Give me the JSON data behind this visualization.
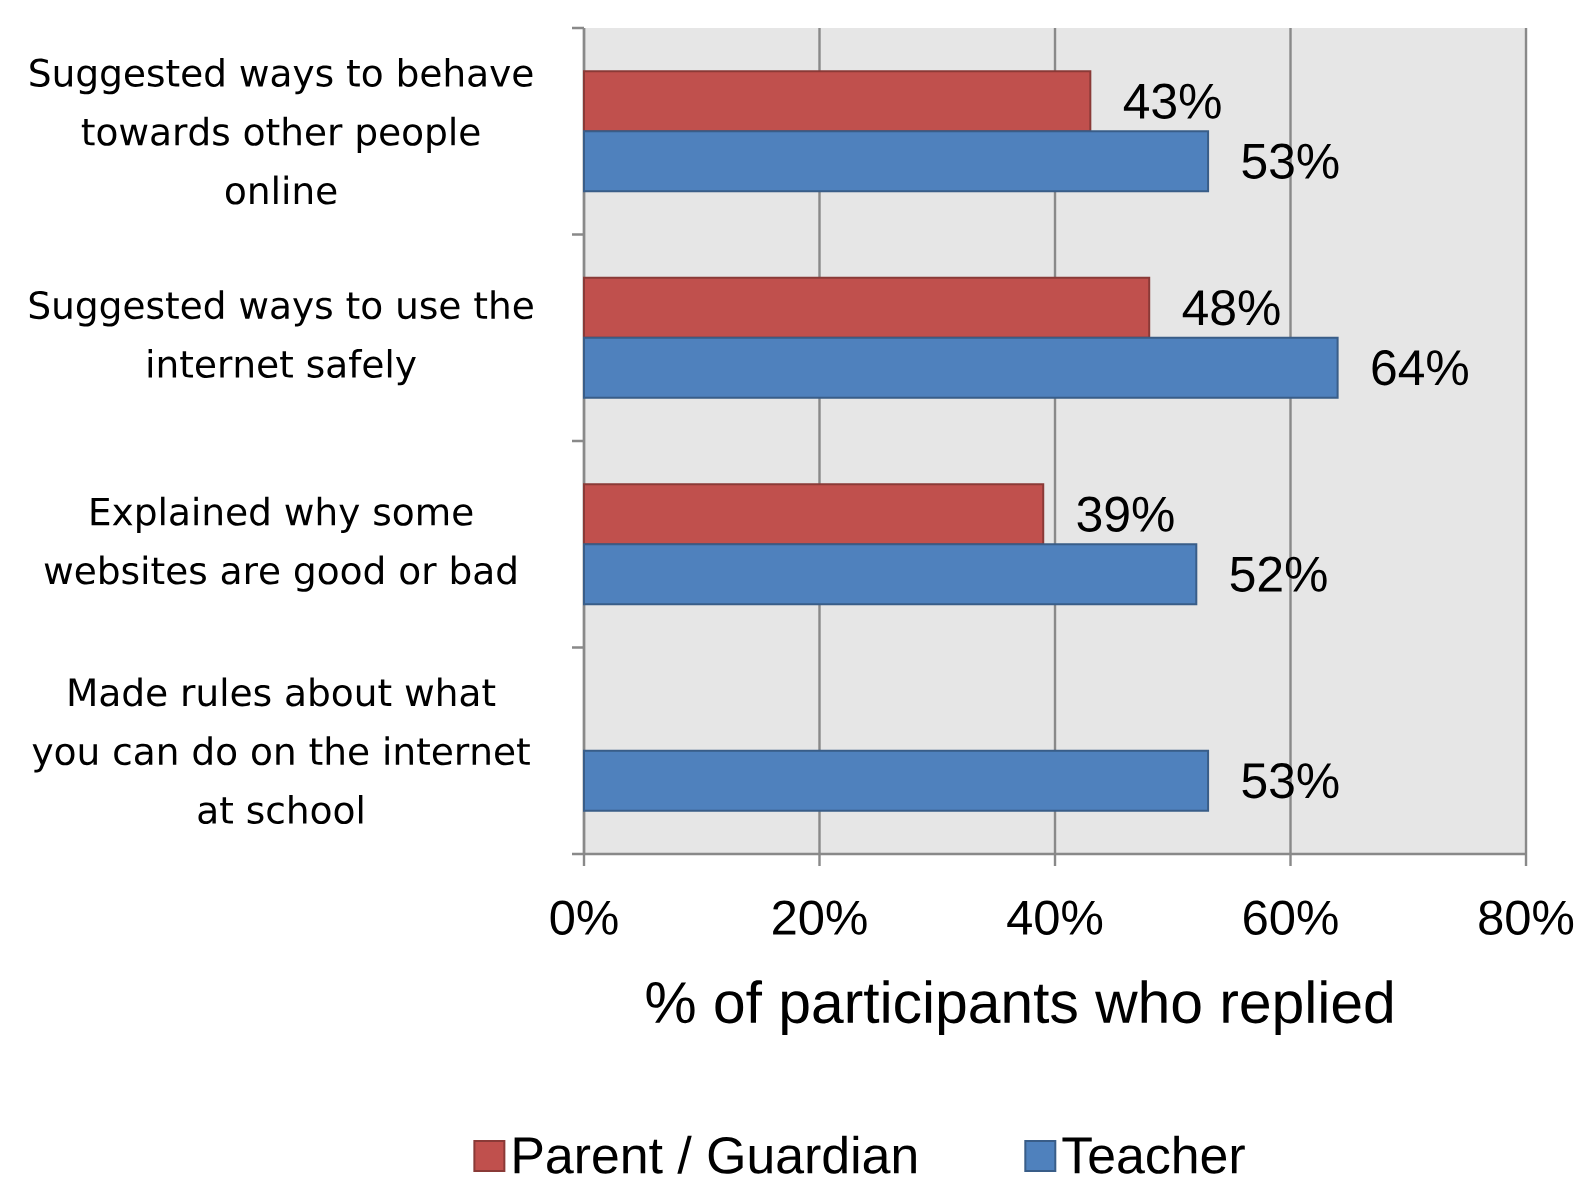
{
  "chart_data": {
    "type": "bar",
    "orientation": "horizontal",
    "categories": [
      "Suggested ways to behave towards other people online",
      "Suggested ways to use the internet safely",
      "Explained why some websites are good or bad",
      "Made rules about what you can do on the internet at school"
    ],
    "series": [
      {
        "name": "Parent / Guardian",
        "color": "#c0504d",
        "values": [
          43,
          48,
          39,
          null
        ],
        "value_labels": [
          "43%",
          "48%",
          "39%",
          null
        ]
      },
      {
        "name": "Teacher",
        "color": "#4f81bd",
        "values": [
          53,
          64,
          52,
          53
        ],
        "value_labels": [
          "53%",
          "64%",
          "52%",
          "53%"
        ]
      }
    ],
    "xlabel": "% of participants who replied",
    "xlim": [
      0,
      80
    ],
    "xticks": [
      {
        "value": 0,
        "label": "0%"
      },
      {
        "value": 20,
        "label": "20%"
      },
      {
        "value": 40,
        "label": "40%"
      },
      {
        "value": 60,
        "label": "60%"
      },
      {
        "value": 80,
        "label": "80%"
      }
    ],
    "grid": "x",
    "legend": "bottom"
  }
}
